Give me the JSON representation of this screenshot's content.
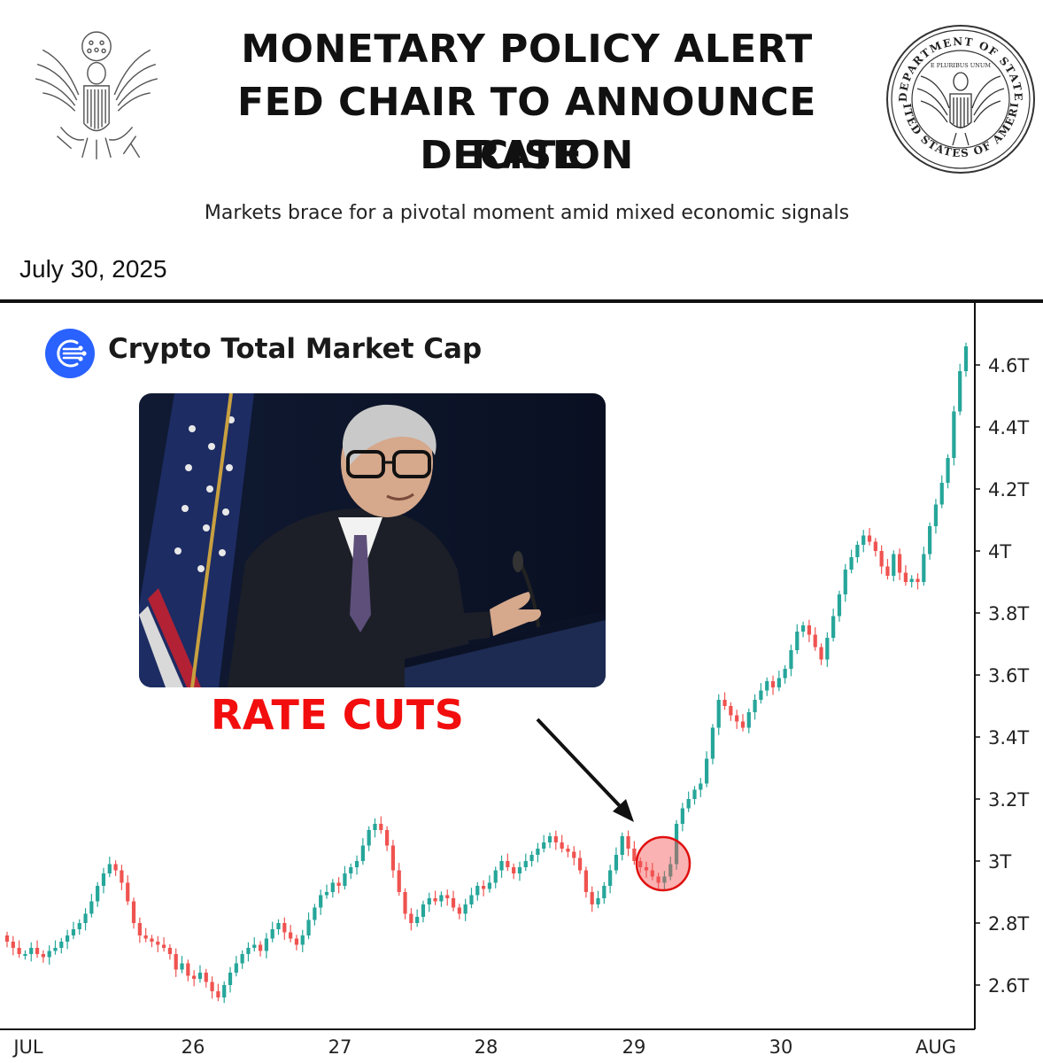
{
  "header": {
    "title_lines": [
      "MONETARY POLICY ALERT",
      "FED CHAIR TO ANNOUNCE RATE",
      "DECISION"
    ],
    "subtitle": "Markets brace for a pivotal moment amid mixed economic signals",
    "date": "July 30, 2025",
    "left_seal_icon": "eagle-seal-icon",
    "right_seal_icon": "department-of-state-seal-icon",
    "right_seal_text_top": "DEPARTMENT OF STATE",
    "right_seal_text_bottom": "UNITED STATES OF AMERICA",
    "right_seal_motto": "E PLURIBUS UNUM"
  },
  "annotation": {
    "label": "RATE CUTS",
    "label_color": "#f20e0e",
    "photo_icon": "fed-chair-photo"
  },
  "colors": {
    "up": "#26a69a",
    "down": "#ef5350",
    "logo": "#2962ff",
    "highlight": "#f55555"
  },
  "chart_data": {
    "type": "candlestick",
    "title": "Crypto Total Market Cap",
    "xlabel": "",
    "ylabel": "",
    "ylim": [
      2.55,
      4.75
    ],
    "y_ticks": [
      {
        "value": 2.6,
        "label": "2.6T"
      },
      {
        "value": 2.8,
        "label": "2.8T"
      },
      {
        "value": 3.0,
        "label": "3T"
      },
      {
        "value": 3.2,
        "label": "3.2T"
      },
      {
        "value": 3.4,
        "label": "3.4T"
      },
      {
        "value": 3.6,
        "label": "3.6T"
      },
      {
        "value": 3.8,
        "label": "3.8T"
      },
      {
        "value": 4.0,
        "label": "4T"
      },
      {
        "value": 4.2,
        "label": "4.2T"
      },
      {
        "value": 4.4,
        "label": "4.4T"
      },
      {
        "value": 4.6,
        "label": "4.6T"
      }
    ],
    "x_ticks": [
      "JUL",
      "26",
      "27",
      "28",
      "29",
      "30",
      "AUG"
    ],
    "grid": false,
    "highlight_label": "RATE CUTS",
    "close_series": [
      2.74,
      2.72,
      2.7,
      2.7,
      2.72,
      2.7,
      2.69,
      2.71,
      2.72,
      2.74,
      2.76,
      2.78,
      2.8,
      2.83,
      2.87,
      2.92,
      2.96,
      2.99,
      2.97,
      2.93,
      2.87,
      2.8,
      2.76,
      2.75,
      2.74,
      2.73,
      2.72,
      2.7,
      2.65,
      2.67,
      2.63,
      2.62,
      2.64,
      2.61,
      2.58,
      2.56,
      2.6,
      2.64,
      2.67,
      2.7,
      2.72,
      2.73,
      2.71,
      2.75,
      2.78,
      2.8,
      2.77,
      2.75,
      2.73,
      2.76,
      2.81,
      2.85,
      2.89,
      2.9,
      2.93,
      2.92,
      2.96,
      2.98,
      3.0,
      3.05,
      3.1,
      3.12,
      3.1,
      3.05,
      2.97,
      2.9,
      2.83,
      2.8,
      2.82,
      2.86,
      2.88,
      2.87,
      2.89,
      2.88,
      2.85,
      2.83,
      2.86,
      2.89,
      2.92,
      2.91,
      2.93,
      2.97,
      3.0,
      2.98,
      2.96,
      2.98,
      3.0,
      3.02,
      3.04,
      3.06,
      3.08,
      3.06,
      3.04,
      3.03,
      3.01,
      2.97,
      2.9,
      2.86,
      2.88,
      2.92,
      2.97,
      3.02,
      3.08,
      3.04,
      3.0,
      2.98,
      2.97,
      2.95,
      2.93,
      2.95,
      2.99,
      3.12,
      3.17,
      3.2,
      3.23,
      3.25,
      3.33,
      3.43,
      3.52,
      3.5,
      3.47,
      3.45,
      3.43,
      3.48,
      3.52,
      3.55,
      3.58,
      3.56,
      3.59,
      3.62,
      3.68,
      3.74,
      3.76,
      3.73,
      3.69,
      3.65,
      3.72,
      3.79,
      3.86,
      3.94,
      3.98,
      4.02,
      4.05,
      4.03,
      4.0,
      3.95,
      3.92,
      3.99,
      3.93,
      3.9,
      3.91,
      3.9,
      3.99,
      4.08,
      4.15,
      4.22,
      4.3,
      4.45,
      4.58,
      4.66
    ],
    "open_first": 2.76
  }
}
